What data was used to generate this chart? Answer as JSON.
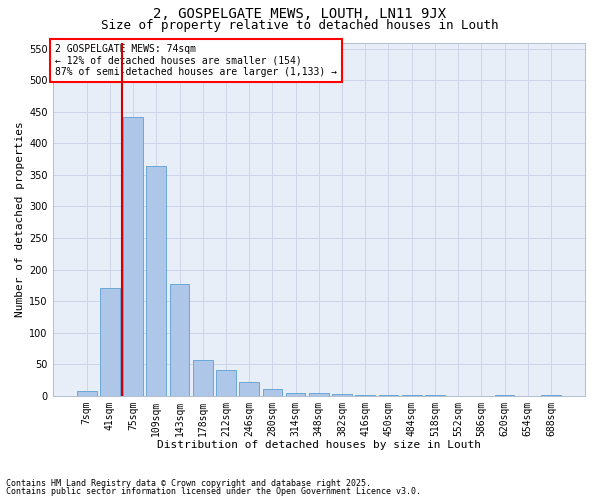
{
  "title1": "2, GOSPELGATE MEWS, LOUTH, LN11 9JX",
  "title2": "Size of property relative to detached houses in Louth",
  "xlabel": "Distribution of detached houses by size in Louth",
  "ylabel": "Number of detached properties",
  "categories": [
    "7sqm",
    "41sqm",
    "75sqm",
    "109sqm",
    "143sqm",
    "178sqm",
    "212sqm",
    "246sqm",
    "280sqm",
    "314sqm",
    "348sqm",
    "382sqm",
    "416sqm",
    "450sqm",
    "484sqm",
    "518sqm",
    "552sqm",
    "586sqm",
    "620sqm",
    "654sqm",
    "688sqm"
  ],
  "values": [
    8,
    170,
    442,
    364,
    177,
    57,
    40,
    21,
    11,
    5,
    4,
    2,
    1,
    1,
    1,
    1,
    0,
    0,
    1,
    0,
    1
  ],
  "bar_color": "#aec6e8",
  "bar_edge_color": "#5a9fd4",
  "grid_color": "#ccd6e8",
  "background_color": "#e8eef8",
  "vline_x": 2,
  "vline_color": "#cc0000",
  "annotation_box_text": "2 GOSPELGATE MEWS: 74sqm\n← 12% of detached houses are smaller (154)\n87% of semi-detached houses are larger (1,133) →",
  "ylim": [
    0,
    560
  ],
  "yticks": [
    0,
    50,
    100,
    150,
    200,
    250,
    300,
    350,
    400,
    450,
    500,
    550
  ],
  "footer1": "Contains HM Land Registry data © Crown copyright and database right 2025.",
  "footer2": "Contains public sector information licensed under the Open Government Licence v3.0.",
  "title1_fontsize": 10,
  "title2_fontsize": 9,
  "axis_label_fontsize": 8,
  "tick_fontsize": 7,
  "annotation_fontsize": 7,
  "footer_fontsize": 6
}
